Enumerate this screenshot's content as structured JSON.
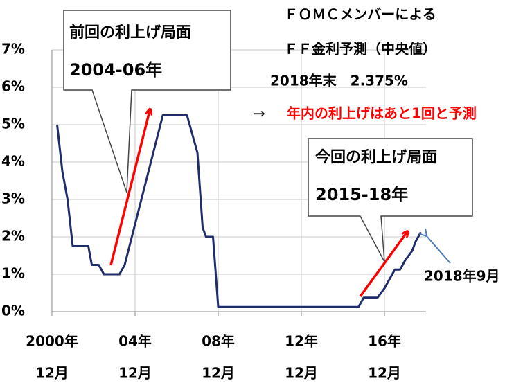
{
  "chart_data": {
    "type": "line",
    "x": [
      "2001-03",
      "2001-06",
      "2001-09",
      "2001-12",
      "2002-09",
      "2002-11",
      "2003-03",
      "2003-06",
      "2004-03",
      "2004-06",
      "2006-04",
      "2007-06",
      "2007-12",
      "2008-03",
      "2008-05",
      "2008-09",
      "2008-12",
      "2015-09",
      "2015-12",
      "2016-08",
      "2016-12",
      "2017-06",
      "2017-09",
      "2017-12",
      "2018-04",
      "2018-06",
      "2018-09"
    ],
    "series": [
      {
        "color": "#1f2d6b",
        "values": [
          5.0,
          3.75,
          3.0,
          1.75,
          1.75,
          1.25,
          1.25,
          1.0,
          1.0,
          1.25,
          5.25,
          5.25,
          4.25,
          2.25,
          2.0,
          2.0,
          0.125,
          0.125,
          0.375,
          0.375,
          0.625,
          1.125,
          1.125,
          1.375,
          1.625,
          1.875,
          2.125
        ]
      }
    ],
    "xlim": [
      "2000-12",
      "2018-12"
    ],
    "xticks": [
      {
        "value": "2000-12",
        "label": [
          "2000年",
          "12月"
        ]
      },
      {
        "value": "2004-12",
        "label": [
          "04年",
          "12月"
        ]
      },
      {
        "value": "2008-12",
        "label": [
          "08年",
          "12月"
        ]
      },
      {
        "value": "2012-12",
        "label": [
          "12年",
          "12月"
        ]
      },
      {
        "value": "2016-12",
        "label": [
          "16年",
          "12月"
        ]
      }
    ],
    "ylim": [
      0,
      7
    ],
    "yticks": [
      {
        "value": 0,
        "label": "0%"
      },
      {
        "value": 1,
        "label": "1%"
      },
      {
        "value": 2,
        "label": "2%"
      },
      {
        "value": 3,
        "label": "3%"
      },
      {
        "value": 4,
        "label": "4%"
      },
      {
        "value": 5,
        "label": "5%"
      },
      {
        "value": 6,
        "label": "6%"
      },
      {
        "value": 7,
        "label": "7%"
      }
    ],
    "grid": true,
    "annotations": {
      "previous_title": "前回の利上げ局面",
      "previous_period": "2004-06年",
      "current_title": "今回の利上げ局面",
      "current_period": "2015-18年",
      "fomc_line1": "ＦＯＭＣメンバーによる",
      "fomc_line2": "ＦＦ金利予測（中央値）",
      "fomc_line3": "2018年末　2.375%",
      "arrow": "→",
      "forecast": "年内の利上げはあと1回と予測",
      "latest": "2018年9月"
    }
  }
}
